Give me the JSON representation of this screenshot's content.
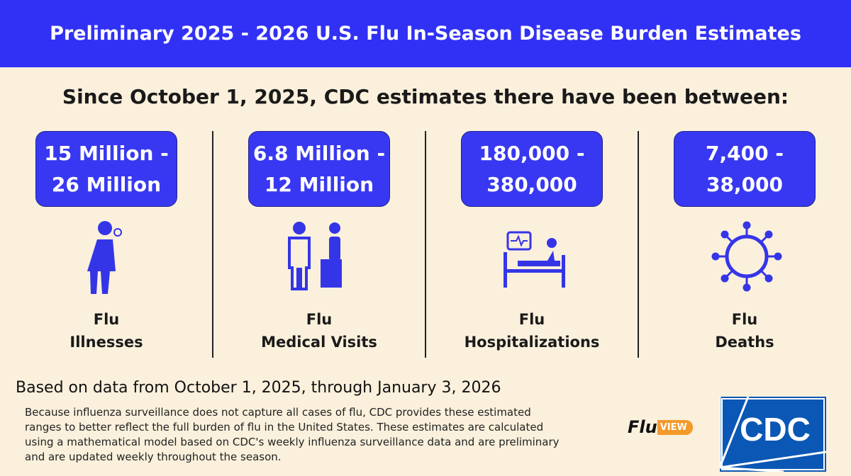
{
  "header": {
    "title": "Preliminary 2025 - 2026 U.S. Flu In-Season Disease Burden Estimates"
  },
  "subtitle": "Since October 1, 2025, CDC estimates there have been between:",
  "stats": [
    {
      "range": [
        "15 Million -",
        "26 Million"
      ],
      "label": [
        "Flu",
        "Illnesses"
      ]
    },
    {
      "range": [
        "6.8 Million -",
        "12 Million"
      ],
      "label": [
        "Flu",
        "Medical Visits"
      ]
    },
    {
      "range": [
        "180,000 -",
        "380,000"
      ],
      "label": [
        "Flu",
        "Hospitalizations"
      ]
    },
    {
      "range": [
        "7,400 -",
        "38,000"
      ],
      "label": [
        "Flu",
        "Deaths"
      ]
    }
  ],
  "footer": {
    "source": "Based on data from October 1, 2025, through January 3, 2026",
    "note": [
      "Because influenza surveillance does not capture all cases of flu, CDC provides these estimated",
      "ranges to better reflect the full burden of flu in the United States. These estimates are calculated",
      "using a mathematical model based on CDC's weekly influenza surveillance data and are preliminary",
      "and are updated weekly throughout the season."
    ]
  },
  "logos": {
    "fluview": [
      "Flu",
      "VIEW"
    ],
    "cdc": "CDC"
  }
}
